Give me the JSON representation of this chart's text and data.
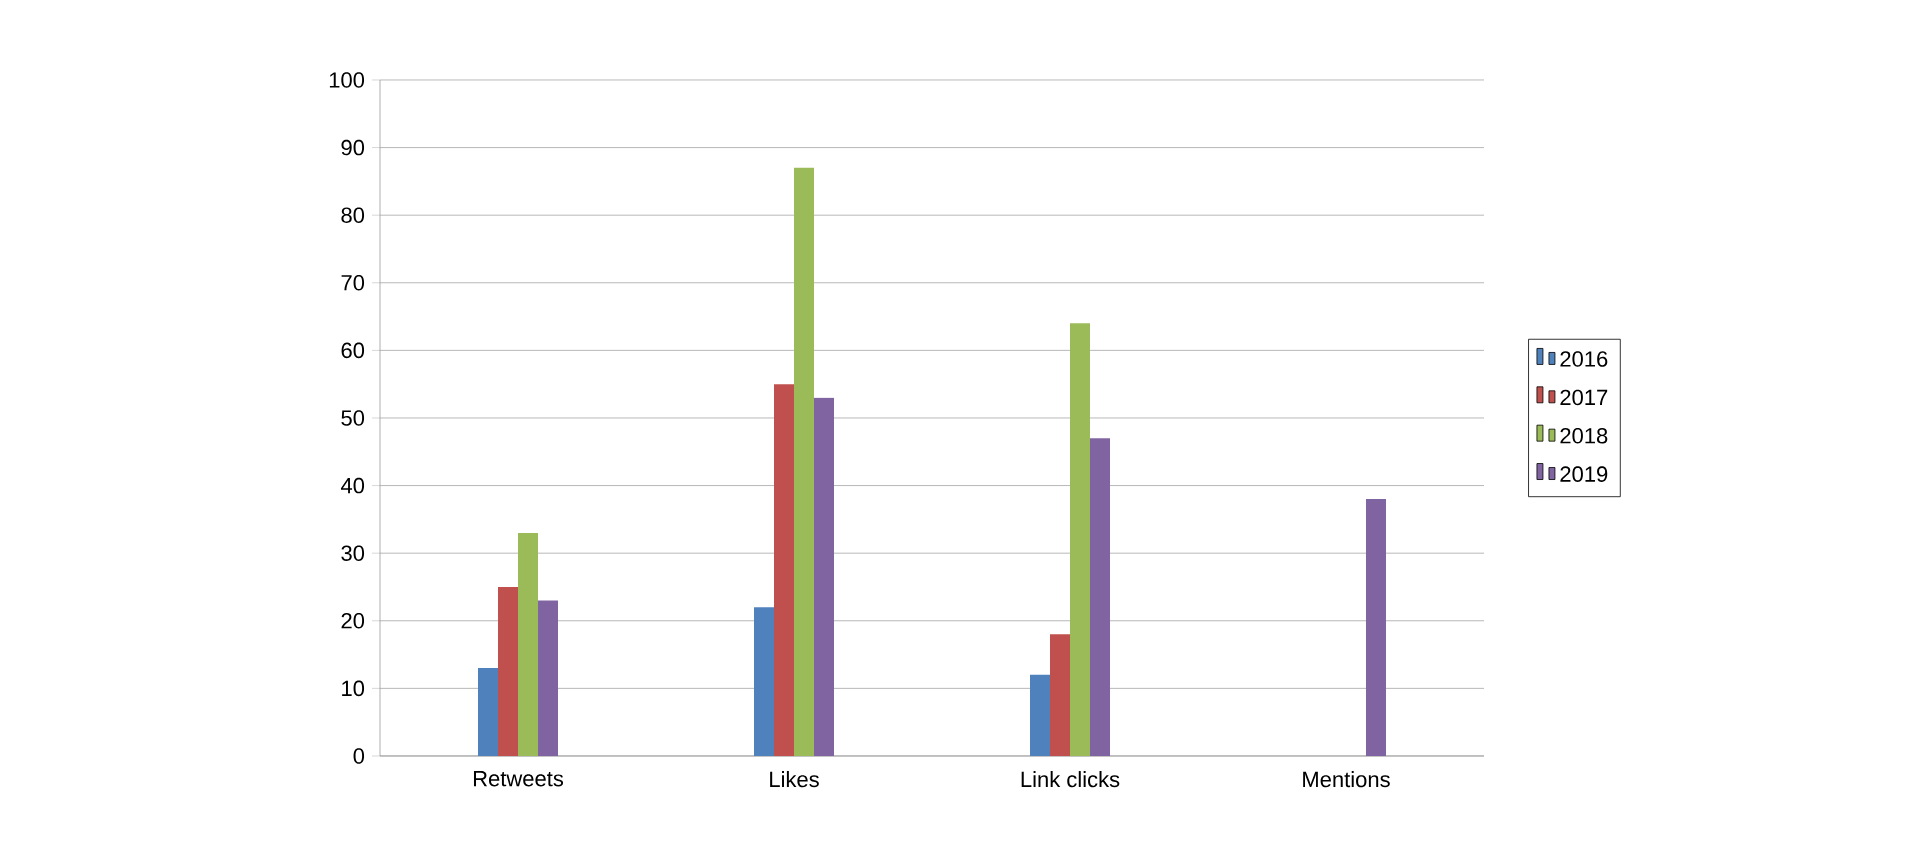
{
  "chart_data": {
    "type": "bar",
    "categories": [
      "Retweets",
      "Likes",
      "Link clicks",
      "Mentions"
    ],
    "series": [
      {
        "name": "2016",
        "color": "#4f81bd",
        "values": [
          13,
          22,
          12,
          null
        ]
      },
      {
        "name": "2017",
        "color": "#c0504d",
        "values": [
          25,
          55,
          18,
          null
        ]
      },
      {
        "name": "2018",
        "color": "#9bbb59",
        "values": [
          33,
          87,
          64,
          null
        ]
      },
      {
        "name": "2019",
        "color": "#8064a2",
        "values": [
          23,
          53,
          47,
          38
        ]
      }
    ],
    "ylim": [
      0,
      100
    ],
    "yticks": [
      0,
      10,
      20,
      30,
      40,
      50,
      60,
      70,
      80,
      90,
      100
    ],
    "grid": "y",
    "legend": "right"
  }
}
